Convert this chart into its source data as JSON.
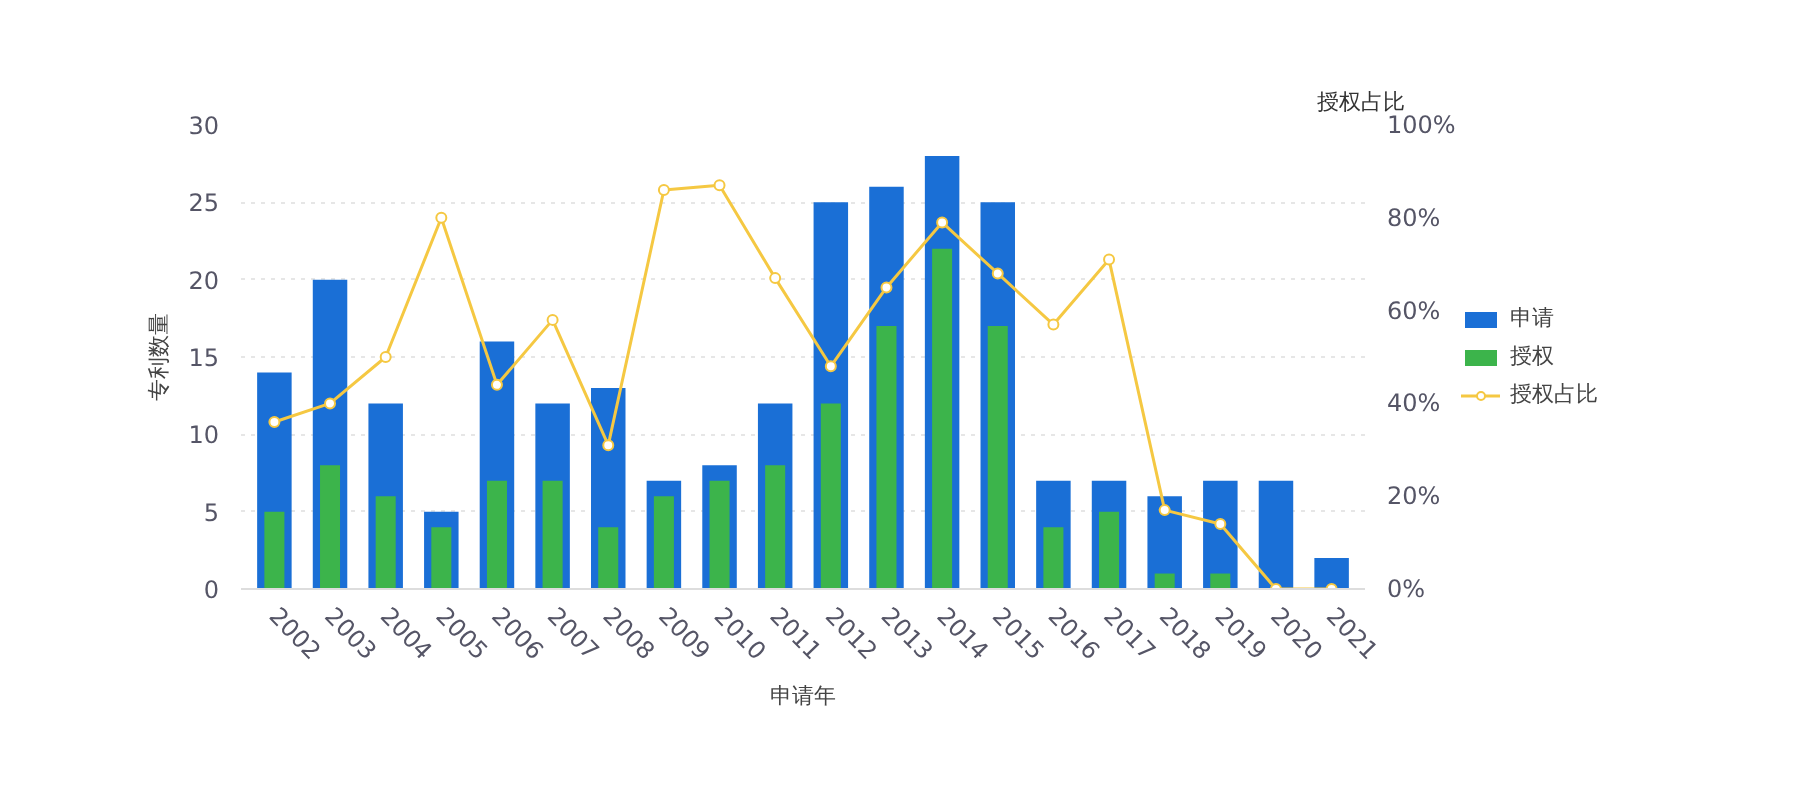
{
  "chart_data": {
    "type": "bar",
    "xlabel": "申请年",
    "ylabel": "专利数量",
    "y2label": "授权占比",
    "categories": [
      "2002",
      "2003",
      "2004",
      "2005",
      "2006",
      "2007",
      "2008",
      "2009",
      "2010",
      "2011",
      "2012",
      "2013",
      "2014",
      "2015",
      "2016",
      "2017",
      "2018",
      "2019",
      "2020",
      "2021"
    ],
    "series": [
      {
        "name": "申请",
        "color": "#1a6fd6",
        "values": [
          14,
          20,
          12,
          5,
          16,
          12,
          13,
          7,
          8,
          12,
          25,
          26,
          28,
          25,
          7,
          7,
          6,
          7,
          7,
          2
        ]
      },
      {
        "name": "授权",
        "color": "#3cb44b",
        "values": [
          5,
          8,
          6,
          4,
          7,
          7,
          4,
          6,
          7,
          8,
          12,
          17,
          22,
          17,
          4,
          5,
          1,
          1,
          0,
          0
        ]
      },
      {
        "name": "授权占比",
        "type": "line",
        "axis": "y2",
        "color": "#f5c842",
        "marker": "circle",
        "values": [
          36,
          40,
          50,
          80,
          44,
          58,
          31,
          86,
          87,
          67,
          48,
          65,
          79,
          68,
          57,
          71,
          17,
          14,
          0,
          0
        ]
      }
    ],
    "ylim": [
      0,
      30
    ],
    "yticks": [
      0,
      5,
      10,
      15,
      20,
      25,
      30
    ],
    "y2lim": [
      0,
      100
    ],
    "y2ticks": [
      {
        "value": 0,
        "label": "0%"
      },
      {
        "value": 20,
        "label": "20%"
      },
      {
        "value": 40,
        "label": "40%"
      },
      {
        "value": 60,
        "label": "60%"
      },
      {
        "value": 80,
        "label": "80%"
      },
      {
        "value": 100,
        "label": "100%"
      }
    ],
    "grid": "y",
    "legend": "right"
  }
}
